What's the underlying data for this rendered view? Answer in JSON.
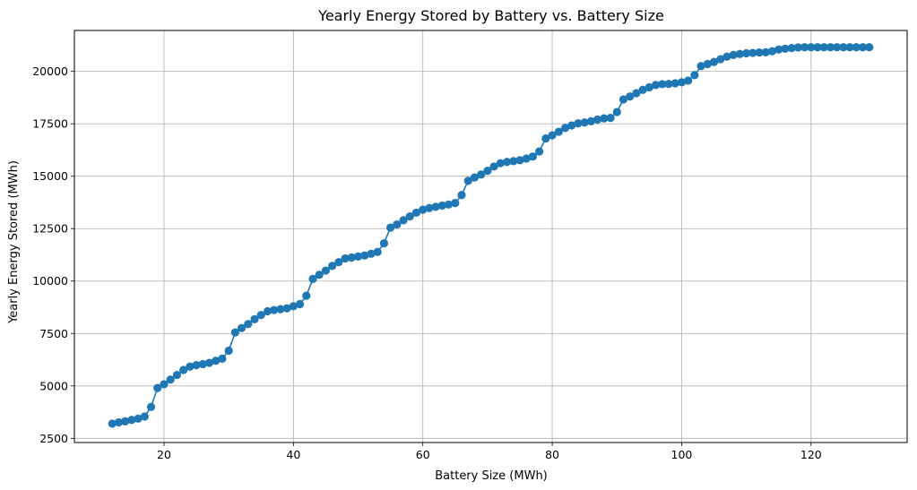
{
  "chart_data": {
    "type": "line",
    "title": "Yearly Energy Stored by Battery vs. Battery Size",
    "xlabel": "Battery Size (MWh)",
    "ylabel": "Yearly Energy Stored (MWh)",
    "xlim": [
      6.15,
      134.85
    ],
    "ylim": [
      2300,
      21950
    ],
    "xticks": [
      20,
      40,
      60,
      80,
      100,
      120
    ],
    "yticks": [
      2500,
      5000,
      7500,
      10000,
      12500,
      15000,
      17500,
      20000
    ],
    "grid": true,
    "markers": true,
    "color": "#1f77b4",
    "x": [
      12,
      13,
      14,
      15,
      16,
      17,
      18,
      19,
      20,
      21,
      22,
      23,
      24,
      25,
      26,
      27,
      28,
      29,
      30,
      31,
      32,
      33,
      34,
      35,
      36,
      37,
      38,
      39,
      40,
      41,
      42,
      43,
      44,
      45,
      46,
      47,
      48,
      49,
      50,
      51,
      52,
      53,
      54,
      55,
      56,
      57,
      58,
      59,
      60,
      61,
      62,
      63,
      64,
      65,
      66,
      67,
      68,
      69,
      70,
      71,
      72,
      73,
      74,
      75,
      76,
      77,
      78,
      79,
      80,
      81,
      82,
      83,
      84,
      85,
      86,
      87,
      88,
      89,
      90,
      91,
      92,
      93,
      94,
      95,
      96,
      97,
      98,
      99,
      100,
      101,
      102,
      103,
      104,
      105,
      106,
      107,
      108,
      109,
      110,
      111,
      112,
      113,
      114,
      115,
      116,
      117,
      118,
      119,
      120,
      121,
      122,
      123,
      124,
      125,
      126,
      127,
      128,
      129
    ],
    "y": [
      3200,
      3260,
      3310,
      3380,
      3440,
      3540,
      4000,
      4900,
      5080,
      5300,
      5520,
      5760,
      5920,
      5990,
      6040,
      6100,
      6200,
      6300,
      6680,
      7550,
      7760,
      7950,
      8180,
      8380,
      8560,
      8620,
      8660,
      8700,
      8800,
      8900,
      9300,
      10100,
      10300,
      10500,
      10720,
      10900,
      11080,
      11120,
      11170,
      11220,
      11300,
      11390,
      11800,
      12550,
      12700,
      12900,
      13080,
      13260,
      13400,
      13480,
      13540,
      13600,
      13650,
      13720,
      14100,
      14780,
      14940,
      15080,
      15260,
      15460,
      15620,
      15680,
      15720,
      15760,
      15840,
      15940,
      16180,
      16800,
      16950,
      17120,
      17300,
      17420,
      17520,
      17560,
      17620,
      17700,
      17760,
      17780,
      18060,
      18660,
      18800,
      18960,
      19120,
      19240,
      19350,
      19390,
      19400,
      19430,
      19480,
      19560,
      19820,
      20250,
      20350,
      20450,
      20580,
      20700,
      20780,
      20830,
      20860,
      20880,
      20900,
      20910,
      20960,
      21040,
      21080,
      21110,
      21140,
      21150,
      21150,
      21150,
      21150,
      21150,
      21150,
      21150,
      21150,
      21150,
      21150,
      21150
    ]
  }
}
